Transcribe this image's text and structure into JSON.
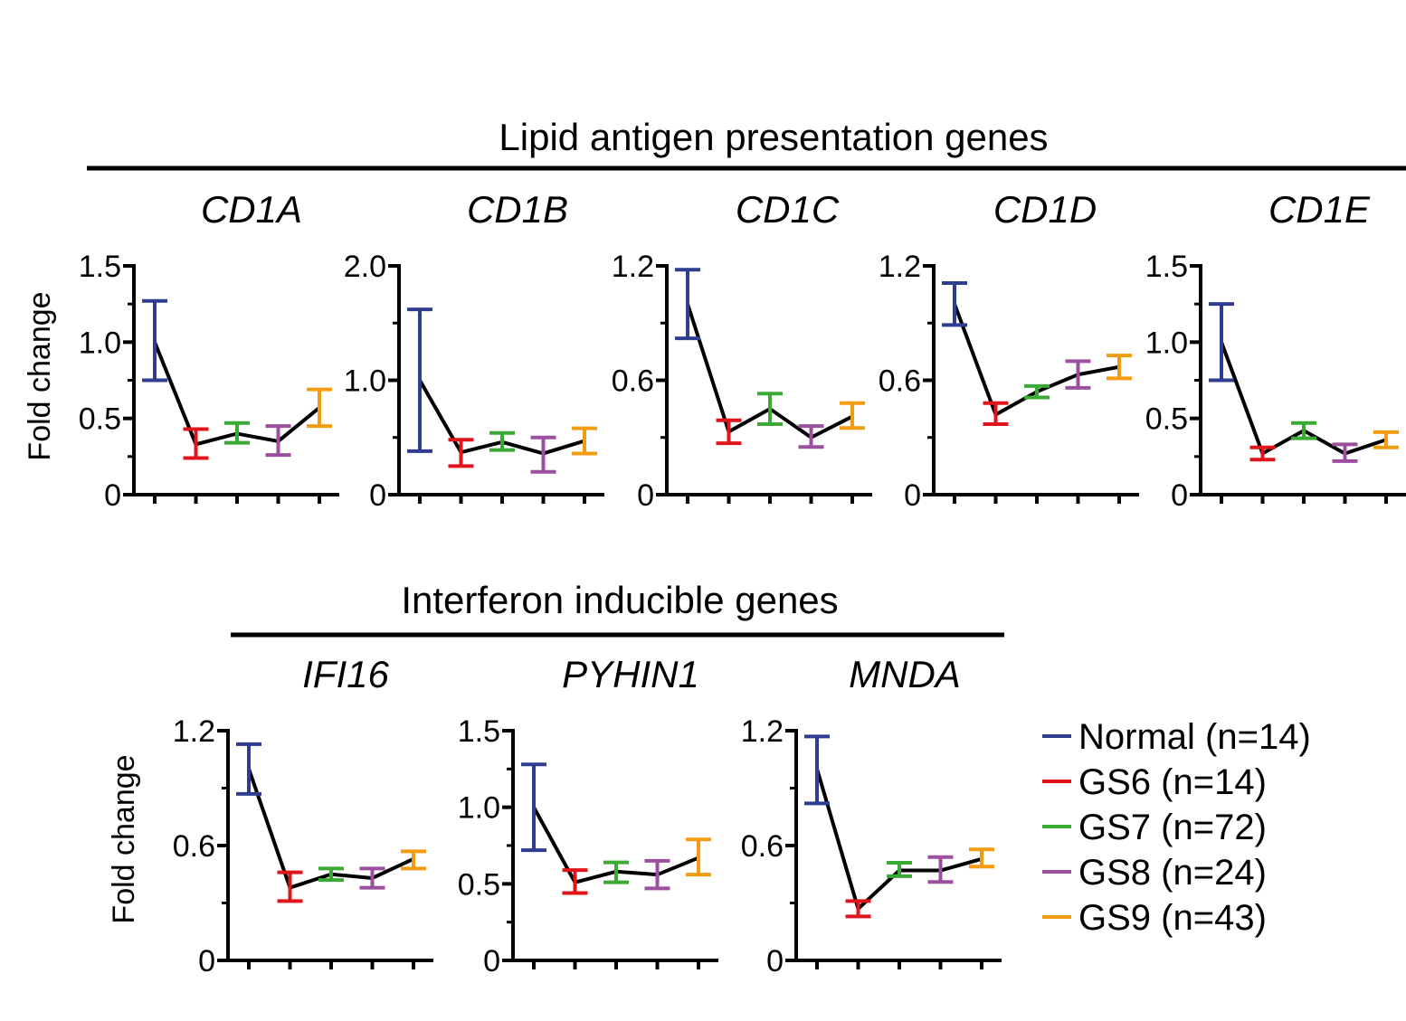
{
  "figure": {
    "top_section_title": "Lipid antigen presentation genes",
    "bottom_section_title": "Interferon inducible genes",
    "y_axis_label": "Fold change"
  },
  "legend": [
    {
      "label": "Normal (n=14)",
      "color": "#2e3d90"
    },
    {
      "label": "GS6 (n=14)",
      "color": "#e0151b"
    },
    {
      "label": "GS7 (n=72)",
      "color": "#3aaa35"
    },
    {
      "label": "GS8 (n=24)",
      "color": "#9b4f9f"
    },
    {
      "label": "GS9 (n=43)",
      "color": "#f39c12"
    }
  ],
  "chart_data": [
    {
      "type": "line",
      "title": "CD1A",
      "ylabel": "Fold change",
      "ylim": [
        0,
        1.5
      ],
      "yticks": [
        "0",
        "0.5",
        "1.0",
        "1.5"
      ],
      "tick_values": [
        0,
        0.5,
        1.0,
        1.5
      ],
      "groups": [
        "Normal (n=14)",
        "GS6 (n=14)",
        "GS7 (n=72)",
        "GS8 (n=24)",
        "GS9 (n=43)"
      ],
      "values": [
        1.0,
        0.33,
        0.4,
        0.35,
        0.57
      ],
      "err_low": [
        0.75,
        0.24,
        0.34,
        0.26,
        0.45
      ],
      "err_high": [
        1.27,
        0.43,
        0.47,
        0.45,
        0.69
      ]
    },
    {
      "type": "line",
      "title": "CD1B",
      "ylabel": "",
      "ylim": [
        0,
        2.0
      ],
      "yticks": [
        "0",
        "1.0",
        "2.0"
      ],
      "tick_values": [
        0,
        1.0,
        2.0
      ],
      "groups": [
        "Normal (n=14)",
        "GS6 (n=14)",
        "GS7 (n=72)",
        "GS8 (n=24)",
        "GS9 (n=43)"
      ],
      "values": [
        1.0,
        0.37,
        0.46,
        0.36,
        0.47
      ],
      "err_low": [
        0.38,
        0.25,
        0.39,
        0.2,
        0.36
      ],
      "err_high": [
        1.62,
        0.48,
        0.54,
        0.5,
        0.58
      ]
    },
    {
      "type": "line",
      "title": "CD1C",
      "ylabel": "",
      "ylim": [
        0,
        1.2
      ],
      "yticks": [
        "0",
        "0.6",
        "1.2"
      ],
      "tick_values": [
        0,
        0.6,
        1.2
      ],
      "groups": [
        "Normal (n=14)",
        "GS6 (n=14)",
        "GS7 (n=72)",
        "GS8 (n=24)",
        "GS9 (n=43)"
      ],
      "values": [
        1.0,
        0.33,
        0.45,
        0.3,
        0.41
      ],
      "err_low": [
        0.82,
        0.27,
        0.37,
        0.25,
        0.35
      ],
      "err_high": [
        1.18,
        0.39,
        0.53,
        0.36,
        0.48
      ]
    },
    {
      "type": "line",
      "title": "CD1D",
      "ylabel": "",
      "ylim": [
        0,
        1.2
      ],
      "yticks": [
        "0",
        "0.6",
        "1.2"
      ],
      "tick_values": [
        0,
        0.6,
        1.2
      ],
      "groups": [
        "Normal (n=14)",
        "GS6 (n=14)",
        "GS7 (n=72)",
        "GS8 (n=24)",
        "GS9 (n=43)"
      ],
      "values": [
        1.0,
        0.42,
        0.54,
        0.63,
        0.67
      ],
      "err_low": [
        0.89,
        0.37,
        0.51,
        0.56,
        0.61
      ],
      "err_high": [
        1.11,
        0.48,
        0.57,
        0.7,
        0.73
      ]
    },
    {
      "type": "line",
      "title": "CD1E",
      "ylabel": "",
      "ylim": [
        0,
        1.5
      ],
      "yticks": [
        "0",
        "0.5",
        "1.0",
        "1.5"
      ],
      "tick_values": [
        0,
        0.5,
        1.0,
        1.5
      ],
      "groups": [
        "Normal (n=14)",
        "GS6 (n=14)",
        "GS7 (n=72)",
        "GS8 (n=24)",
        "GS9 (n=43)"
      ],
      "values": [
        1.0,
        0.27,
        0.42,
        0.27,
        0.36
      ],
      "err_low": [
        0.75,
        0.23,
        0.37,
        0.22,
        0.31
      ],
      "err_high": [
        1.25,
        0.31,
        0.47,
        0.33,
        0.41
      ]
    },
    {
      "type": "line",
      "title": "IFI16",
      "ylabel": "Fold change",
      "ylim": [
        0,
        1.2
      ],
      "yticks": [
        "0",
        "0.6",
        "1.2"
      ],
      "tick_values": [
        0,
        0.6,
        1.2
      ],
      "groups": [
        "Normal (n=14)",
        "GS6 (n=14)",
        "GS7 (n=72)",
        "GS8 (n=24)",
        "GS9 (n=43)"
      ],
      "values": [
        1.0,
        0.38,
        0.45,
        0.43,
        0.53
      ],
      "err_low": [
        0.87,
        0.31,
        0.42,
        0.38,
        0.48
      ],
      "err_high": [
        1.13,
        0.46,
        0.48,
        0.48,
        0.57
      ]
    },
    {
      "type": "line",
      "title": "PYHIN1",
      "ylabel": "",
      "ylim": [
        0,
        1.5
      ],
      "yticks": [
        "0",
        "0.5",
        "1.0",
        "1.5"
      ],
      "tick_values": [
        0,
        0.5,
        1.0,
        1.5
      ],
      "groups": [
        "Normal (n=14)",
        "GS6 (n=14)",
        "GS7 (n=72)",
        "GS8 (n=24)",
        "GS9 (n=43)"
      ],
      "values": [
        1.0,
        0.51,
        0.58,
        0.56,
        0.67
      ],
      "err_low": [
        0.72,
        0.44,
        0.51,
        0.47,
        0.56
      ],
      "err_high": [
        1.28,
        0.59,
        0.64,
        0.65,
        0.79
      ]
    },
    {
      "type": "line",
      "title": "MNDA",
      "ylabel": "",
      "ylim": [
        0,
        1.2
      ],
      "yticks": [
        "0",
        "0.6",
        "1.2"
      ],
      "tick_values": [
        0,
        0.6,
        1.2
      ],
      "groups": [
        "Normal (n=14)",
        "GS6 (n=14)",
        "GS7 (n=72)",
        "GS8 (n=24)",
        "GS9 (n=43)"
      ],
      "values": [
        1.0,
        0.27,
        0.47,
        0.47,
        0.53
      ],
      "err_low": [
        0.82,
        0.23,
        0.44,
        0.41,
        0.49
      ],
      "err_high": [
        1.17,
        0.31,
        0.51,
        0.54,
        0.58
      ]
    }
  ]
}
